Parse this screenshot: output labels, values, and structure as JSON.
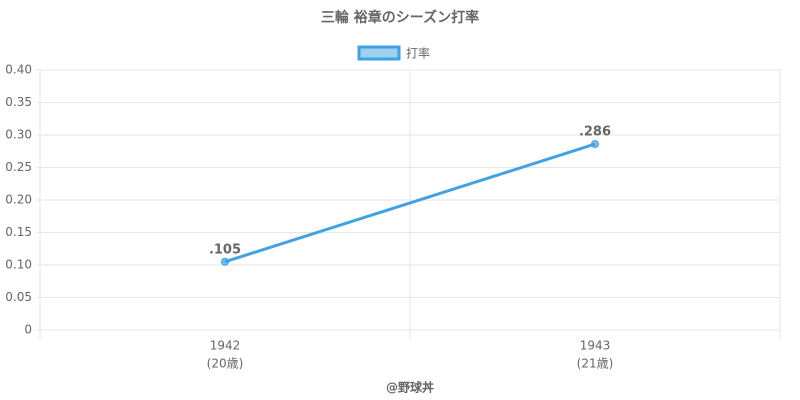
{
  "chart_data": {
    "type": "line",
    "title": "三輪 裕章のシーズン打率",
    "categories": [
      "1942",
      "1943"
    ],
    "x_sublabels": [
      "(20歳)",
      "(21歳)"
    ],
    "series": [
      {
        "name": "打率",
        "color": "#3fa2e3",
        "values": [
          0.105,
          0.286
        ],
        "value_labels": [
          ".105",
          ".286"
        ]
      }
    ],
    "ylim": [
      0,
      0.4
    ],
    "yticks": [
      0,
      0.05,
      {
        "value": 0.1,
        "label": "0.10"
      },
      0.15,
      {
        "value": 0.2,
        "label": "0.20"
      },
      0.25,
      {
        "value": 0.3,
        "label": "0.30"
      },
      0.35,
      {
        "value": 0.4,
        "label": "0.40"
      }
    ],
    "xlabel": "@野球丼",
    "grid": true
  }
}
